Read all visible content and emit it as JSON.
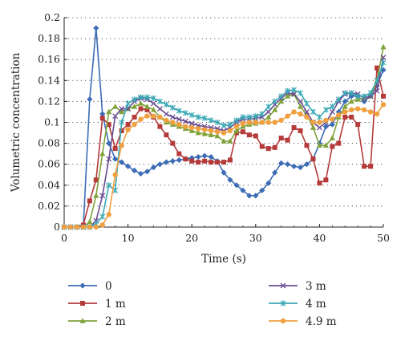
{
  "chart_data": {
    "type": "line",
    "xlabel": "Time (s)",
    "ylabel": "Volumetric concentration",
    "xlim": [
      0,
      50
    ],
    "ylim": [
      0,
      0.2
    ],
    "x_ticks": [
      "0",
      "10",
      "20",
      "30",
      "40",
      "50"
    ],
    "y_ticks": [
      "0",
      "0.02",
      "0.04",
      "0.06",
      "0.08",
      "0.1",
      "0.12",
      "0.14",
      "0.16",
      "0.18",
      "0.2"
    ],
    "grid": "horizontal dotted",
    "legend_position": "bottom",
    "series": [
      {
        "name": "0",
        "color": "#3b6cb5",
        "marker": "diamond",
        "points": [
          [
            0,
            0
          ],
          [
            1,
            0
          ],
          [
            2,
            0
          ],
          [
            3,
            0
          ],
          [
            4,
            0.122
          ],
          [
            5,
            0.19
          ],
          [
            6,
            0.108
          ],
          [
            7,
            0.08
          ],
          [
            8,
            0.065
          ],
          [
            9,
            0.062
          ],
          [
            10,
            0.058
          ],
          [
            11,
            0.054
          ],
          [
            12,
            0.051
          ],
          [
            13,
            0.053
          ],
          [
            14,
            0.057
          ],
          [
            15,
            0.06
          ],
          [
            16,
            0.062
          ],
          [
            17,
            0.063
          ],
          [
            18,
            0.064
          ],
          [
            19,
            0.065
          ],
          [
            20,
            0.066
          ],
          [
            21,
            0.067
          ],
          [
            22,
            0.068
          ],
          [
            23,
            0.067
          ],
          [
            24,
            0.063
          ],
          [
            25,
            0.052
          ],
          [
            26,
            0.045
          ],
          [
            27,
            0.04
          ],
          [
            28,
            0.035
          ],
          [
            29,
            0.03
          ],
          [
            30,
            0.03
          ],
          [
            31,
            0.035
          ],
          [
            32,
            0.042
          ],
          [
            33,
            0.052
          ],
          [
            34,
            0.061
          ],
          [
            35,
            0.06
          ],
          [
            36,
            0.058
          ],
          [
            37,
            0.057
          ],
          [
            38,
            0.06
          ],
          [
            39,
            0.065
          ],
          [
            40,
            0.08
          ],
          [
            41,
            0.096
          ],
          [
            42,
            0.098
          ],
          [
            43,
            0.11
          ],
          [
            44,
            0.12
          ],
          [
            45,
            0.125
          ],
          [
            46,
            0.125
          ],
          [
            47,
            0.12
          ],
          [
            48,
            0.125
          ],
          [
            49,
            0.135
          ],
          [
            50,
            0.15
          ]
        ]
      },
      {
        "name": "1 m",
        "color": "#b53a3a",
        "marker": "square",
        "points": [
          [
            0,
            0
          ],
          [
            1,
            0
          ],
          [
            2,
            0
          ],
          [
            3,
            0.002
          ],
          [
            4,
            0.025
          ],
          [
            5,
            0.045
          ],
          [
            6,
            0.104
          ],
          [
            7,
            0.098
          ],
          [
            8,
            0.075
          ],
          [
            9,
            0.092
          ],
          [
            10,
            0.098
          ],
          [
            11,
            0.105
          ],
          [
            12,
            0.113
          ],
          [
            13,
            0.112
          ],
          [
            14,
            0.105
          ],
          [
            15,
            0.096
          ],
          [
            16,
            0.088
          ],
          [
            17,
            0.08
          ],
          [
            18,
            0.07
          ],
          [
            19,
            0.065
          ],
          [
            20,
            0.063
          ],
          [
            21,
            0.062
          ],
          [
            22,
            0.063
          ],
          [
            23,
            0.062
          ],
          [
            24,
            0.062
          ],
          [
            25,
            0.062
          ],
          [
            26,
            0.064
          ],
          [
            27,
            0.09
          ],
          [
            28,
            0.091
          ],
          [
            29,
            0.088
          ],
          [
            30,
            0.087
          ],
          [
            31,
            0.077
          ],
          [
            32,
            0.075
          ],
          [
            33,
            0.076
          ],
          [
            34,
            0.085
          ],
          [
            35,
            0.083
          ],
          [
            36,
            0.095
          ],
          [
            37,
            0.092
          ],
          [
            38,
            0.078
          ],
          [
            39,
            0.065
          ],
          [
            40,
            0.042
          ],
          [
            41,
            0.045
          ],
          [
            42,
            0.077
          ],
          [
            43,
            0.08
          ],
          [
            44,
            0.105
          ],
          [
            45,
            0.105
          ],
          [
            46,
            0.098
          ],
          [
            47,
            0.058
          ],
          [
            48,
            0.058
          ],
          [
            49,
            0.152
          ],
          [
            50,
            0.125
          ]
        ]
      },
      {
        "name": "2 m",
        "color": "#7fa33a",
        "marker": "triangle",
        "points": [
          [
            0,
            0
          ],
          [
            1,
            0
          ],
          [
            2,
            0
          ],
          [
            3,
            0
          ],
          [
            4,
            0.005
          ],
          [
            5,
            0.03
          ],
          [
            6,
            0.07
          ],
          [
            7,
            0.11
          ],
          [
            8,
            0.115
          ],
          [
            9,
            0.11
          ],
          [
            10,
            0.113
          ],
          [
            11,
            0.115
          ],
          [
            12,
            0.118
          ],
          [
            13,
            0.115
          ],
          [
            14,
            0.112
          ],
          [
            15,
            0.105
          ],
          [
            16,
            0.1
          ],
          [
            17,
            0.098
          ],
          [
            18,
            0.096
          ],
          [
            19,
            0.094
          ],
          [
            20,
            0.092
          ],
          [
            21,
            0.09
          ],
          [
            22,
            0.089
          ],
          [
            23,
            0.088
          ],
          [
            24,
            0.087
          ],
          [
            25,
            0.082
          ],
          [
            26,
            0.082
          ],
          [
            27,
            0.092
          ],
          [
            28,
            0.096
          ],
          [
            29,
            0.098
          ],
          [
            30,
            0.099
          ],
          [
            31,
            0.1
          ],
          [
            32,
            0.105
          ],
          [
            33,
            0.112
          ],
          [
            34,
            0.12
          ],
          [
            35,
            0.125
          ],
          [
            36,
            0.127
          ],
          [
            37,
            0.115
          ],
          [
            38,
            0.107
          ],
          [
            39,
            0.095
          ],
          [
            40,
            0.078
          ],
          [
            41,
            0.078
          ],
          [
            42,
            0.085
          ],
          [
            43,
            0.105
          ],
          [
            44,
            0.115
          ],
          [
            45,
            0.12
          ],
          [
            46,
            0.122
          ],
          [
            47,
            0.123
          ],
          [
            48,
            0.125
          ],
          [
            49,
            0.14
          ],
          [
            50,
            0.172
          ]
        ]
      },
      {
        "name": "3 m",
        "color": "#6a4c93",
        "marker": "x",
        "points": [
          [
            0,
            0
          ],
          [
            1,
            0
          ],
          [
            2,
            0
          ],
          [
            3,
            0
          ],
          [
            4,
            0
          ],
          [
            5,
            0.006
          ],
          [
            6,
            0.03
          ],
          [
            7,
            0.065
          ],
          [
            8,
            0.106
          ],
          [
            9,
            0.113
          ],
          [
            10,
            0.113
          ],
          [
            11,
            0.12
          ],
          [
            12,
            0.123
          ],
          [
            13,
            0.122
          ],
          [
            14,
            0.118
          ],
          [
            15,
            0.113
          ],
          [
            16,
            0.108
          ],
          [
            17,
            0.105
          ],
          [
            18,
            0.103
          ],
          [
            19,
            0.101
          ],
          [
            20,
            0.099
          ],
          [
            21,
            0.097
          ],
          [
            22,
            0.096
          ],
          [
            23,
            0.095
          ],
          [
            24,
            0.094
          ],
          [
            25,
            0.092
          ],
          [
            26,
            0.095
          ],
          [
            27,
            0.1
          ],
          [
            28,
            0.103
          ],
          [
            29,
            0.103
          ],
          [
            30,
            0.104
          ],
          [
            31,
            0.105
          ],
          [
            32,
            0.11
          ],
          [
            33,
            0.117
          ],
          [
            34,
            0.123
          ],
          [
            35,
            0.128
          ],
          [
            36,
            0.127
          ],
          [
            37,
            0.12
          ],
          [
            38,
            0.11
          ],
          [
            39,
            0.1
          ],
          [
            40,
            0.095
          ],
          [
            41,
            0.1
          ],
          [
            42,
            0.11
          ],
          [
            43,
            0.12
          ],
          [
            44,
            0.127
          ],
          [
            45,
            0.128
          ],
          [
            46,
            0.127
          ],
          [
            47,
            0.123
          ],
          [
            48,
            0.125
          ],
          [
            49,
            0.13
          ],
          [
            50,
            0.162
          ]
        ]
      },
      {
        "name": "4 m",
        "color": "#3aa8b5",
        "marker": "star",
        "points": [
          [
            0,
            0
          ],
          [
            1,
            0
          ],
          [
            2,
            0
          ],
          [
            3,
            0
          ],
          [
            4,
            0
          ],
          [
            5,
            0.003
          ],
          [
            6,
            0.01
          ],
          [
            7,
            0.04
          ],
          [
            8,
            0.035
          ],
          [
            9,
            0.1
          ],
          [
            10,
            0.118
          ],
          [
            11,
            0.122
          ],
          [
            12,
            0.124
          ],
          [
            13,
            0.124
          ],
          [
            14,
            0.123
          ],
          [
            15,
            0.12
          ],
          [
            16,
            0.117
          ],
          [
            17,
            0.114
          ],
          [
            18,
            0.111
          ],
          [
            19,
            0.109
          ],
          [
            20,
            0.107
          ],
          [
            21,
            0.105
          ],
          [
            22,
            0.104
          ],
          [
            23,
            0.102
          ],
          [
            24,
            0.1
          ],
          [
            25,
            0.097
          ],
          [
            26,
            0.098
          ],
          [
            27,
            0.102
          ],
          [
            28,
            0.105
          ],
          [
            29,
            0.105
          ],
          [
            30,
            0.106
          ],
          [
            31,
            0.108
          ],
          [
            32,
            0.115
          ],
          [
            33,
            0.12
          ],
          [
            34,
            0.125
          ],
          [
            35,
            0.13
          ],
          [
            36,
            0.131
          ],
          [
            37,
            0.128
          ],
          [
            38,
            0.118
          ],
          [
            39,
            0.11
          ],
          [
            40,
            0.105
          ],
          [
            41,
            0.112
          ],
          [
            42,
            0.115
          ],
          [
            43,
            0.122
          ],
          [
            44,
            0.128
          ],
          [
            45,
            0.128
          ],
          [
            46,
            0.125
          ],
          [
            47,
            0.125
          ],
          [
            48,
            0.128
          ],
          [
            49,
            0.14
          ],
          [
            50,
            0.157
          ]
        ]
      },
      {
        "name": "4.9 m",
        "color": "#f0a040",
        "marker": "circle",
        "points": [
          [
            0,
            0
          ],
          [
            1,
            0
          ],
          [
            2,
            0
          ],
          [
            3,
            0
          ],
          [
            4,
            0
          ],
          [
            5,
            0
          ],
          [
            6,
            0.002
          ],
          [
            7,
            0.012
          ],
          [
            8,
            0.05
          ],
          [
            9,
            0.078
          ],
          [
            10,
            0.093
          ],
          [
            11,
            0.098
          ],
          [
            12,
            0.103
          ],
          [
            13,
            0.106
          ],
          [
            14,
            0.106
          ],
          [
            15,
            0.105
          ],
          [
            16,
            0.102
          ],
          [
            17,
            0.1
          ],
          [
            18,
            0.098
          ],
          [
            19,
            0.096
          ],
          [
            20,
            0.095
          ],
          [
            21,
            0.094
          ],
          [
            22,
            0.093
          ],
          [
            23,
            0.092
          ],
          [
            24,
            0.091
          ],
          [
            25,
            0.09
          ],
          [
            26,
            0.092
          ],
          [
            27,
            0.096
          ],
          [
            28,
            0.099
          ],
          [
            29,
            0.1
          ],
          [
            30,
            0.1
          ],
          [
            31,
            0.1
          ],
          [
            32,
            0.1
          ],
          [
            33,
            0.1
          ],
          [
            34,
            0.102
          ],
          [
            35,
            0.106
          ],
          [
            36,
            0.11
          ],
          [
            37,
            0.108
          ],
          [
            38,
            0.105
          ],
          [
            39,
            0.1
          ],
          [
            40,
            0.1
          ],
          [
            41,
            0.102
          ],
          [
            42,
            0.103
          ],
          [
            43,
            0.107
          ],
          [
            44,
            0.11
          ],
          [
            45,
            0.112
          ],
          [
            46,
            0.113
          ],
          [
            47,
            0.112
          ],
          [
            48,
            0.11
          ],
          [
            49,
            0.108
          ],
          [
            50,
            0.117
          ]
        ]
      }
    ]
  }
}
